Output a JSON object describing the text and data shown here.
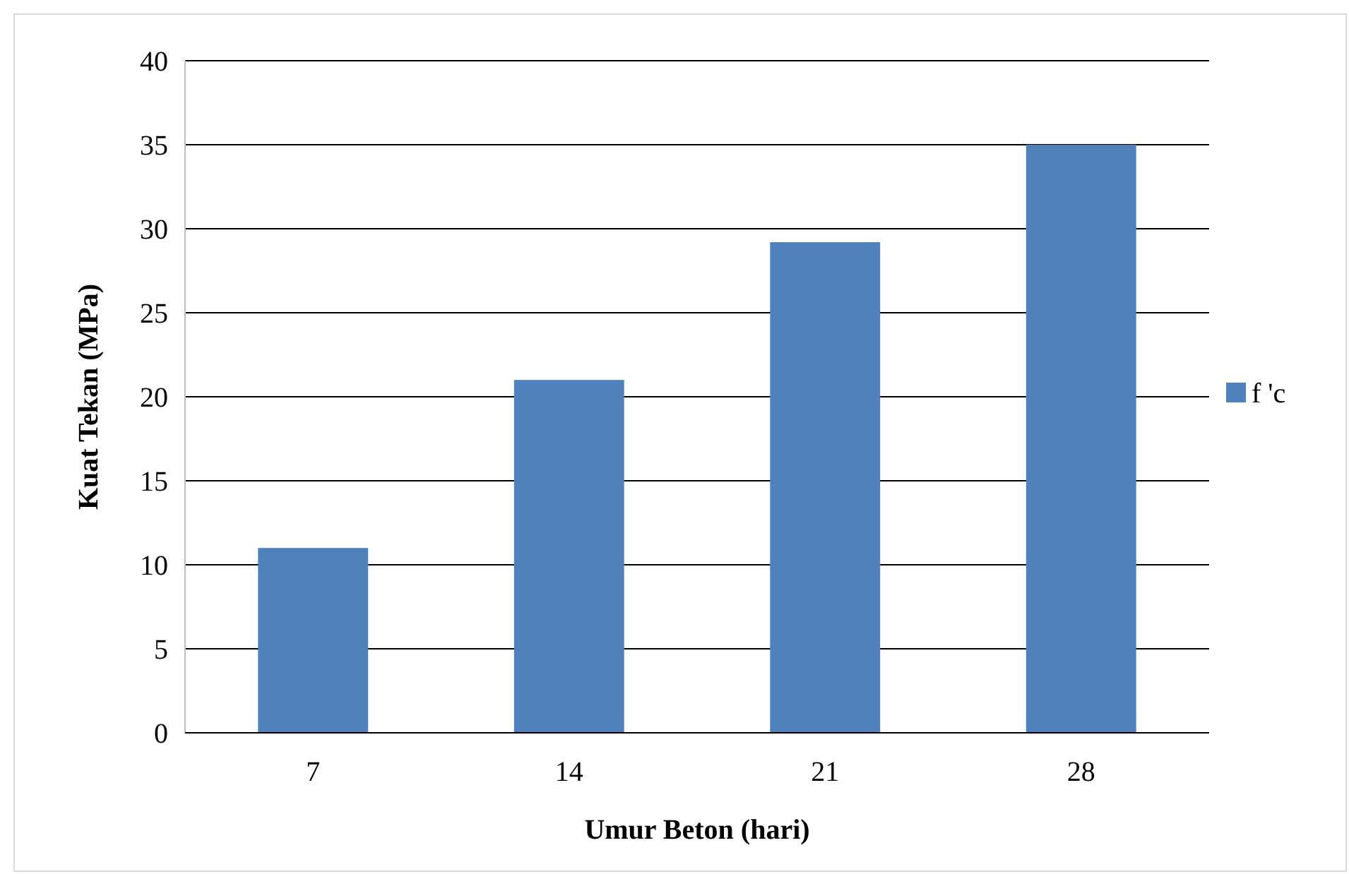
{
  "chart_data": {
    "type": "bar",
    "xlabel": "Umur Beton (hari)",
    "ylabel": "Kuat Tekan (MPa)",
    "categories": [
      "7",
      "14",
      "21",
      "28"
    ],
    "series": [
      {
        "name": "f 'c",
        "color": "#4f81bd",
        "values": [
          11,
          21,
          29.2,
          35
        ]
      }
    ],
    "ylim": [
      0,
      40
    ],
    "yticks": [
      0,
      5,
      10,
      15,
      20,
      25,
      30,
      35,
      40
    ],
    "grid": "y",
    "legend": "right"
  }
}
